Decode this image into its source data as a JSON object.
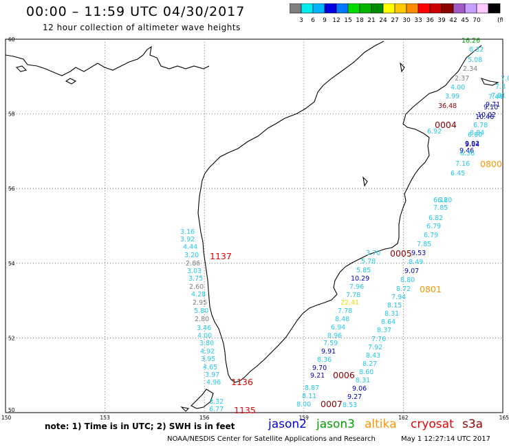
{
  "header": {
    "title": "00:00  –  11:59 UTC 04/30/2017",
    "subtitle": "12 hour collection of altimeter wave heights"
  },
  "scale": {
    "unit": "(ft)",
    "bins": [
      {
        "label": "",
        "color": "#808080"
      },
      {
        "label": "3",
        "color": "#00eeee"
      },
      {
        "label": "6",
        "color": "#00b4ff"
      },
      {
        "label": "9",
        "color": "#0000dc"
      },
      {
        "label": "12",
        "color": "#0078ff"
      },
      {
        "label": "15",
        "color": "#00dc00"
      },
      {
        "label": "18",
        "color": "#00b400"
      },
      {
        "label": "21",
        "color": "#008c00"
      },
      {
        "label": "24",
        "color": "#ffff00"
      },
      {
        "label": "27",
        "color": "#ffc800"
      },
      {
        "label": "30",
        "color": "#ff8c00"
      },
      {
        "label": "33",
        "color": "#ff0000"
      },
      {
        "label": "36",
        "color": "#c80000"
      },
      {
        "label": "39",
        "color": "#8c0000"
      },
      {
        "label": "42",
        "color": "#a05ac8"
      },
      {
        "label": "45",
        "color": "#c8a0ff"
      },
      {
        "label": "70",
        "color": "#ffc8ff"
      },
      {
        "label": "",
        "color": "#000000"
      }
    ]
  },
  "map": {
    "lat_labels": [
      "60",
      "58",
      "56",
      "54",
      "52",
      "50"
    ],
    "lon_labels": [
      "150",
      "153",
      "156",
      "159",
      "162",
      "165"
    ],
    "colors": {
      "cyan": "#22c8e6",
      "gray": "#808080",
      "navy": "#0000b4",
      "maroon": "#8c0000",
      "red": "#e60000",
      "green": "#00a000",
      "yellow": "#e6dc00",
      "orange": "#ff9600",
      "violet": "#c8a0ff"
    },
    "points": [
      {
        "t": "3.16",
        "c": "cyan"
      },
      {
        "t": "3.92",
        "c": "cyan"
      },
      {
        "t": "4.44",
        "c": "cyan"
      },
      {
        "t": "3.20",
        "c": "cyan"
      },
      {
        "t": "2.86",
        "c": "gray"
      },
      {
        "t": "3.03",
        "c": "cyan"
      },
      {
        "t": "3.75",
        "c": "cyan"
      },
      {
        "t": "2.60",
        "c": "gray"
      },
      {
        "t": "4.28",
        "c": "cyan"
      },
      {
        "t": "2.95",
        "c": "gray"
      },
      {
        "t": "5.80",
        "c": "cyan"
      },
      {
        "t": "2.80",
        "c": "gray"
      },
      {
        "t": "3.46",
        "c": "cyan"
      },
      {
        "t": "4.00",
        "c": "cyan"
      },
      {
        "t": "3.80",
        "c": "cyan"
      },
      {
        "t": "4.92",
        "c": "cyan"
      },
      {
        "t": "3.95",
        "c": "cyan"
      },
      {
        "t": "4.65",
        "c": "cyan"
      },
      {
        "t": "3.97",
        "c": "cyan"
      },
      {
        "t": "4.96",
        "c": "cyan"
      },
      {
        "t": "3.32",
        "c": "cyan"
      },
      {
        "t": "6.77",
        "c": "cyan"
      },
      {
        "t": "16.26",
        "c": "green"
      },
      {
        "t": "6.32",
        "c": "cyan"
      },
      {
        "t": "5.08",
        "c": "cyan"
      },
      {
        "t": "2.34",
        "c": "gray"
      },
      {
        "t": "2.37",
        "c": "gray"
      },
      {
        "t": "4.00",
        "c": "cyan"
      },
      {
        "t": "3.99",
        "c": "cyan"
      },
      {
        "t": "36.48",
        "c": "maroon"
      },
      {
        "t": "6.92",
        "c": "cyan"
      },
      {
        "t": "7.16",
        "c": "cyan"
      },
      {
        "t": "6.45",
        "c": "cyan"
      },
      {
        "t": "6.20",
        "c": "cyan"
      },
      {
        "t": "7.0",
        "c": "cyan"
      },
      {
        "t": "7.3",
        "c": "cyan"
      },
      {
        "t": "7.81",
        "c": "cyan"
      },
      {
        "t": "7.44",
        "c": "cyan"
      },
      {
        "t": "9.71",
        "c": "navy"
      },
      {
        "t": "9.10",
        "c": "navy"
      },
      {
        "t": "10.02",
        "c": "navy"
      },
      {
        "t": "10.46",
        "c": "navy"
      },
      {
        "t": "6.78",
        "c": "cyan"
      },
      {
        "t": "8.84",
        "c": "cyan"
      },
      {
        "t": "6.80",
        "c": "cyan"
      },
      {
        "t": "9.92",
        "c": "navy"
      },
      {
        "t": "9.04",
        "c": "navy"
      },
      {
        "t": "9.46",
        "c": "navy"
      },
      {
        "t": "6.36",
        "c": "cyan"
      },
      {
        "t": "6.18",
        "c": "cyan"
      },
      {
        "t": "7.85",
        "c": "cyan"
      },
      {
        "t": "6.82",
        "c": "cyan"
      },
      {
        "t": "6.79",
        "c": "cyan"
      },
      {
        "t": "6.79",
        "c": "cyan"
      },
      {
        "t": "7.85",
        "c": "cyan"
      },
      {
        "t": "9.53",
        "c": "navy"
      },
      {
        "t": "8.49",
        "c": "cyan"
      },
      {
        "t": "9.07",
        "c": "navy"
      },
      {
        "t": "8.80",
        "c": "cyan"
      },
      {
        "t": "8.72",
        "c": "cyan"
      },
      {
        "t": "7.94",
        "c": "cyan"
      },
      {
        "t": "8.15",
        "c": "cyan"
      },
      {
        "t": "8.31",
        "c": "cyan"
      },
      {
        "t": "8.64",
        "c": "cyan"
      },
      {
        "t": "8.37",
        "c": "cyan"
      },
      {
        "t": "7.76",
        "c": "cyan"
      },
      {
        "t": "7.92",
        "c": "cyan"
      },
      {
        "t": "8.43",
        "c": "cyan"
      },
      {
        "t": "8.27",
        "c": "cyan"
      },
      {
        "t": "8.60",
        "c": "cyan"
      },
      {
        "t": "8.31",
        "c": "cyan"
      },
      {
        "t": "9.06",
        "c": "navy"
      },
      {
        "t": "9.27",
        "c": "navy"
      },
      {
        "t": "8.53",
        "c": "cyan"
      },
      {
        "t": "3.70",
        "c": "cyan"
      },
      {
        "t": "5.78",
        "c": "cyan"
      },
      {
        "t": "5.85",
        "c": "cyan"
      },
      {
        "t": "10.29",
        "c": "navy"
      },
      {
        "t": "7.96",
        "c": "cyan"
      },
      {
        "t": "7.78",
        "c": "cyan"
      },
      {
        "t": "22.41",
        "c": "yellow"
      },
      {
        "t": "7.78",
        "c": "cyan"
      },
      {
        "t": "8.48",
        "c": "cyan"
      },
      {
        "t": "6.94",
        "c": "cyan"
      },
      {
        "t": "8.96",
        "c": "cyan"
      },
      {
        "t": "7.59",
        "c": "cyan"
      },
      {
        "t": "9.91",
        "c": "navy"
      },
      {
        "t": "8.36",
        "c": "cyan"
      },
      {
        "t": "9.70",
        "c": "navy"
      },
      {
        "t": "9.21",
        "c": "navy"
      },
      {
        "t": "8.87",
        "c": "cyan"
      },
      {
        "t": "8.11",
        "c": "cyan"
      },
      {
        "t": "8.00",
        "c": "cyan"
      }
    ],
    "time_labels": [
      {
        "t": "1137",
        "c": "red"
      },
      {
        "t": "1136",
        "c": "red"
      },
      {
        "t": "1135",
        "c": "red"
      },
      {
        "t": "0004",
        "c": "maroon"
      },
      {
        "t": "0800",
        "c": "orange"
      },
      {
        "t": "0005",
        "c": "maroon"
      },
      {
        "t": "0801",
        "c": "orange"
      },
      {
        "t": "0006",
        "c": "maroon"
      },
      {
        "t": "0007",
        "c": "maroon"
      }
    ]
  },
  "note": "note:  1) Time is in UTC;  2) SWH is in feet",
  "satellites": [
    {
      "name": "jason2",
      "color": "#0000dc"
    },
    {
      "name": "jason3",
      "color": "#00a000"
    },
    {
      "name": "altika",
      "color": "#ff9600"
    },
    {
      "name": "cryosat",
      "color": "#e60000"
    },
    {
      "name": "s3a",
      "color": "#8c0000"
    }
  ],
  "footer": {
    "credit": "NOAA/NESDIS Center for Satellite Applications and Research",
    "generated": "May  1 12:27:14 UTC 2017"
  }
}
